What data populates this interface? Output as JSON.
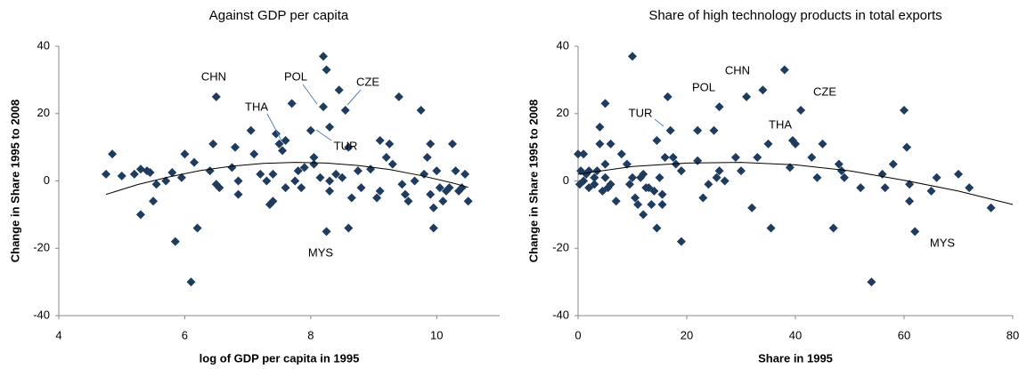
{
  "chart_data": [
    {
      "type": "scatter",
      "title": "Against GDP per capita",
      "x_label": "log of GDP per capita in 1995",
      "y_label": "Change in Share 1995 to 2008",
      "color": "#1f3b5e",
      "x": [
        4.75,
        4.85,
        5.0,
        5.2,
        5.3,
        5.3,
        5.4,
        5.45,
        5.5,
        5.55,
        5.7,
        5.8,
        5.85,
        5.95,
        6.0,
        6.15,
        6.2,
        6.1,
        6.4,
        6.45,
        6.5,
        6.5,
        6.55,
        6.75,
        6.8,
        6.85,
        6.85,
        7.05,
        7.1,
        7.2,
        7.3,
        7.35,
        7.4,
        7.4,
        7.45,
        7.5,
        7.55,
        7.6,
        7.6,
        7.7,
        7.75,
        7.8,
        7.85,
        7.9,
        8.0,
        8.05,
        8.05,
        8.15,
        8.2,
        8.2,
        8.25,
        8.25,
        8.3,
        8.3,
        8.3,
        8.4,
        8.45,
        8.5,
        8.55,
        8.6,
        8.6,
        8.65,
        8.75,
        8.8,
        8.95,
        9.05,
        9.1,
        9.1,
        9.2,
        9.25,
        9.3,
        9.4,
        9.45,
        9.5,
        9.55,
        9.65,
        9.75,
        9.8,
        9.85,
        9.9,
        9.9,
        9.95,
        9.95,
        10.0,
        10.05,
        10.1,
        10.15,
        10.2,
        10.25,
        10.3,
        10.35,
        10.4,
        10.45,
        10.5
      ],
      "values": [
        2,
        8,
        1.5,
        2,
        3.5,
        -10,
        3,
        2.5,
        -6,
        -1,
        0,
        2.5,
        -18,
        1,
        8,
        5.5,
        -14,
        -30,
        3,
        11,
        25,
        -1,
        -2,
        4,
        10,
        -4,
        0,
        15,
        8,
        2,
        0,
        -7,
        -6,
        2,
        14,
        11,
        9,
        12,
        -2,
        23,
        0,
        3,
        -2,
        4,
        15,
        7,
        5,
        1,
        22,
        37,
        33,
        -15,
        -3,
        16,
        0,
        2,
        27,
        1,
        21,
        10,
        -14,
        -5,
        3,
        -2,
        3.5,
        -5,
        12,
        -3,
        7,
        11,
        5,
        25,
        -1,
        -4,
        -6,
        0,
        21,
        2,
        7,
        -4,
        11,
        -14,
        -8,
        3,
        -2,
        -6,
        -3,
        -2,
        11,
        3,
        -3,
        -2,
        2,
        -6
      ],
      "trend": {
        "x": [
          4.75,
          5.25,
          5.75,
          6.25,
          6.75,
          7.25,
          7.75,
          8.25,
          8.75,
          9.25,
          9.75,
          10.25,
          10.5
        ],
        "values": [
          -4,
          -1.1,
          1.2,
          3.1,
          4.4,
          5.2,
          5.5,
          5.3,
          4.6,
          3.4,
          1.6,
          -0.6,
          -1.9
        ]
      },
      "annotations": [
        {
          "text": "CHN"
        },
        {
          "text": "POL"
        },
        {
          "text": "CZE"
        },
        {
          "text": "THA"
        },
        {
          "text": "TUR"
        },
        {
          "text": "MYS"
        }
      ],
      "xlim": [
        4,
        11
      ],
      "xticks": [
        4,
        6,
        8,
        10
      ],
      "ylim": [
        -40,
        40
      ],
      "yticks": [
        40,
        20,
        0,
        -20,
        -40
      ]
    },
    {
      "type": "scatter",
      "title": "Share of high technology products in total exports",
      "x_label": "Share in 1995",
      "y_label": "Change in Share 1995 to 2008",
      "color": "#1f3b5e",
      "x": [
        0,
        0.5,
        0.3,
        1,
        1,
        1.5,
        2,
        2,
        3,
        3,
        3.5,
        4,
        4,
        4.5,
        5,
        5,
        5,
        5.5,
        6,
        6,
        7,
        8,
        9,
        9.5,
        10,
        10,
        10.5,
        11,
        11.5,
        12,
        12,
        12.5,
        13,
        13.5,
        14,
        14.5,
        14.5,
        15,
        15.5,
        15.5,
        16,
        16.5,
        17,
        17.5,
        18,
        19,
        19,
        22,
        22,
        23,
        24,
        25,
        25.5,
        26,
        26,
        27,
        29,
        30,
        31,
        32,
        33,
        34,
        35,
        35.5,
        38,
        39,
        39.5,
        40,
        41,
        43,
        44,
        45,
        47,
        48,
        48.5,
        49,
        52,
        54,
        56,
        56.5,
        58,
        60,
        60.5,
        61,
        61,
        62,
        65,
        66,
        70,
        72,
        76
      ],
      "values": [
        8,
        3,
        -1,
        0,
        8,
        2,
        -2,
        3,
        1,
        -1,
        3,
        16,
        11,
        -3,
        23,
        5,
        1,
        -2,
        11,
        -1,
        -6,
        8,
        5,
        -1,
        37,
        1,
        -5,
        -7,
        1,
        -10,
        2,
        -2,
        -2,
        -7,
        -3,
        -14,
        12,
        1,
        -4,
        -7,
        7,
        25,
        15,
        7,
        5,
        -18,
        3,
        15,
        6,
        -5,
        -1,
        15,
        1,
        22,
        3,
        0,
        7,
        3,
        25,
        -8,
        7,
        27,
        11,
        -14,
        33,
        4,
        12,
        11,
        21,
        7,
        1,
        11,
        -14,
        5,
        3,
        1,
        -2,
        -30,
        2,
        -2,
        5,
        21,
        10,
        -1,
        -6,
        -15,
        -3,
        1,
        2,
        -2,
        -8
      ],
      "trend": {
        "x": [
          0,
          10,
          20,
          30,
          40,
          50,
          60,
          70,
          80
        ],
        "values": [
          2,
          4.3,
          5.3,
          5.5,
          4.8,
          3,
          0.2,
          -3,
          -7
        ]
      },
      "annotations": [
        {
          "text": "CHN"
        },
        {
          "text": "POL"
        },
        {
          "text": "CZE"
        },
        {
          "text": "TUR"
        },
        {
          "text": "THA"
        },
        {
          "text": "MYS"
        }
      ],
      "xlim": [
        0,
        80
      ],
      "xticks": [
        0,
        20,
        40,
        60,
        80
      ],
      "ylim": [
        -40,
        40
      ],
      "yticks": [
        40,
        20,
        0,
        -20,
        -40
      ]
    }
  ]
}
